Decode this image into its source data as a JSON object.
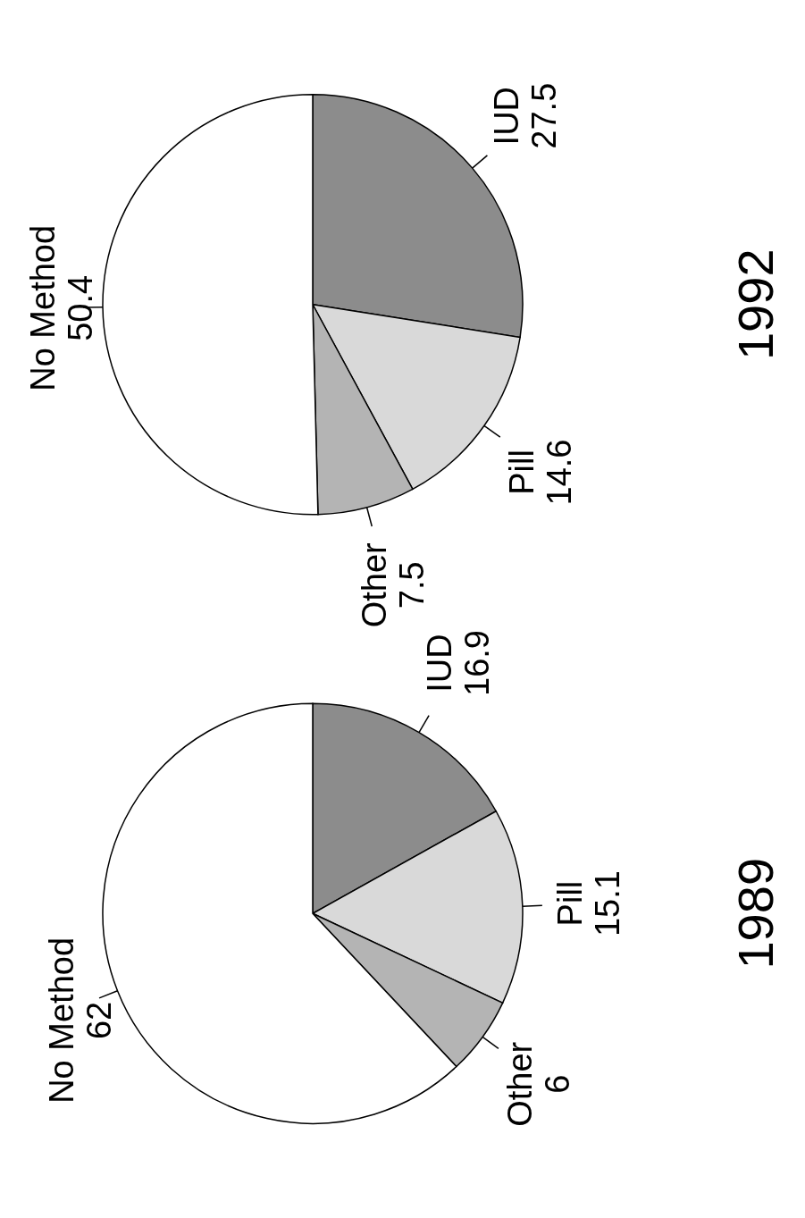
{
  "chart_data": [
    {
      "type": "pie",
      "title": "1989",
      "categories": [
        "IUD",
        "Pill",
        "Other",
        "No Method"
      ],
      "values": [
        16.9,
        15.1,
        6,
        62
      ],
      "colors": [
        "#8c8c8c",
        "#d9d9d9",
        "#b4b4b4",
        "#ffffff"
      ],
      "data_labels": true
    },
    {
      "type": "pie",
      "title": "1992",
      "categories": [
        "IUD",
        "Pill",
        "Other",
        "No Method"
      ],
      "values": [
        27.5,
        14.6,
        7.5,
        50.4
      ],
      "colors": [
        "#8c8c8c",
        "#d9d9d9",
        "#b4b4b4",
        "#ffffff"
      ],
      "data_labels": true
    }
  ]
}
